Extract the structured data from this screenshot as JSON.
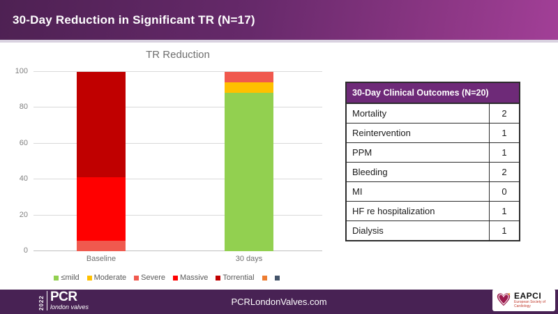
{
  "slide": {
    "title": "30-Day Reduction in Significant TR (N=17)"
  },
  "chart_data": {
    "type": "bar",
    "stacked": true,
    "title": "TR Reduction",
    "categories": [
      "Baseline",
      "30 days"
    ],
    "series": [
      {
        "name": "≤mild",
        "color": "#92d050",
        "values": [
          0,
          88.2
        ]
      },
      {
        "name": "Moderate",
        "color": "#ffc000",
        "values": [
          0,
          5.9
        ]
      },
      {
        "name": "Severe",
        "color": "#f0594e",
        "values": [
          5.9,
          5.9
        ]
      },
      {
        "name": "Massive",
        "color": "#ff0000",
        "values": [
          35.3,
          0
        ]
      },
      {
        "name": "Torrential",
        "color": "#c00000",
        "values": [
          58.8,
          0
        ]
      },
      {
        "name": "",
        "color": "#ed7d31",
        "values": [
          0,
          0
        ]
      },
      {
        "name": "",
        "color": "#44546a",
        "values": [
          0,
          0
        ]
      }
    ],
    "xlabel": "",
    "ylabel": "",
    "ylim": [
      0,
      100
    ],
    "yticks": [
      0,
      20,
      40,
      60,
      80,
      100
    ],
    "grid": true,
    "legend_position": "bottom"
  },
  "outcomes_table": {
    "header": "30-Day Clinical Outcomes (N=20)",
    "rows": [
      {
        "label": "Mortality",
        "value": "2"
      },
      {
        "label": "Reintervention",
        "value": "1"
      },
      {
        "label": "PPM",
        "value": "1"
      },
      {
        "label": "Bleeding",
        "value": "2"
      },
      {
        "label": "MI",
        "value": "0"
      },
      {
        "label": "HF re hospitalization",
        "value": "1"
      },
      {
        "label": "Dialysis",
        "value": "1"
      }
    ]
  },
  "footer": {
    "logo_year": "2022",
    "logo_main": "PCR",
    "logo_sub": "london valves",
    "website": "PCRLondonValves.com",
    "eapci_name": "EAPCI",
    "eapci_tagline": "European Society of Cardiology"
  },
  "colors": {
    "header_gradient_start": "#4e2153",
    "header_gradient_end": "#a23f97",
    "header_strip": "#d9d2e0",
    "footer_bg": "#482254",
    "table_header_bg": "#6e2a78",
    "eapci_heart_red": "#9b1b4d"
  }
}
